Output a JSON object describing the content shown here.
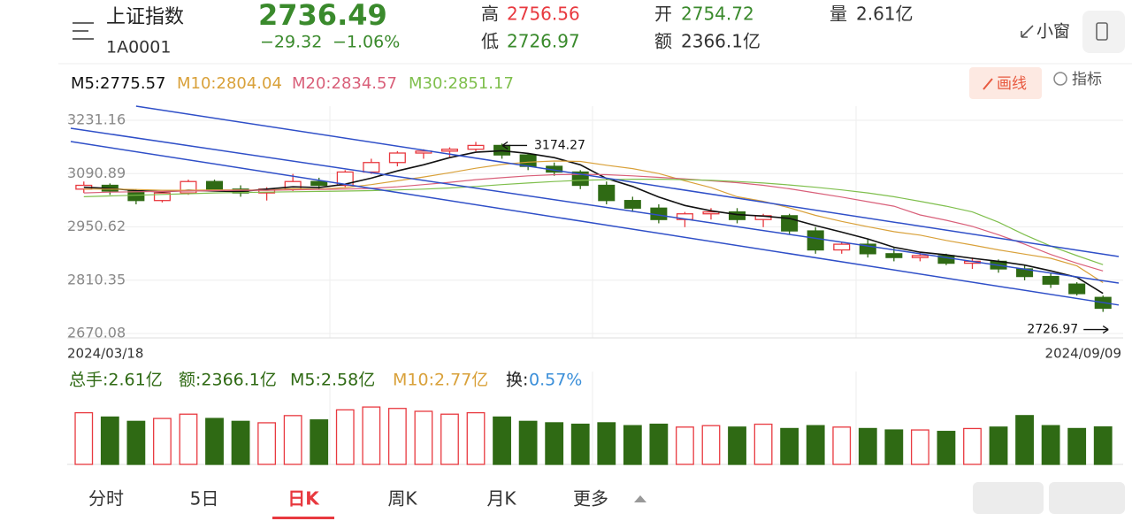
{
  "header": {
    "name": "上证指数",
    "code": "1A0001",
    "price": "2736.49",
    "change": "−29.32",
    "change_pct": "−1.06%",
    "high_label": "高",
    "high": "2756.56",
    "low_label": "低",
    "low": "2726.97",
    "open_label": "开",
    "open": "2754.72",
    "amount_label": "额",
    "amount": "2366.1亿",
    "volume_label": "量",
    "volume": "2.61亿",
    "window": "小窗"
  },
  "toolbar": {
    "draw": "画线",
    "indicator": "指标"
  },
  "chart_data": {
    "type": "candlestick",
    "categories": [
      "2024/03/18",
      null,
      null,
      null,
      null,
      null,
      null,
      null,
      null,
      null,
      null,
      null,
      null,
      null,
      null,
      null,
      null,
      null,
      null,
      null,
      null,
      null,
      null,
      null,
      null,
      null,
      null,
      null,
      null,
      null,
      null,
      null,
      null,
      null,
      null,
      null,
      null,
      null,
      null,
      "2024/09/09"
    ],
    "ylim": [
      2670.08,
      3231.16
    ],
    "yticks": [
      2670.08,
      2810.35,
      2950.62,
      3090.89,
      3231.16
    ],
    "grid": true,
    "up_color": "#e8393f",
    "down_color": "#2f6a14",
    "candles": [
      {
        "open": 3050,
        "high": 3070,
        "low": 3040,
        "close": 3060
      },
      {
        "open": 3060,
        "high": 3065,
        "low": 3035,
        "close": 3045
      },
      {
        "open": 3045,
        "high": 3050,
        "low": 3010,
        "close": 3020
      },
      {
        "open": 3020,
        "high": 3045,
        "low": 3015,
        "close": 3040
      },
      {
        "open": 3040,
        "high": 3075,
        "low": 3035,
        "close": 3070
      },
      {
        "open": 3070,
        "high": 3075,
        "low": 3045,
        "close": 3050
      },
      {
        "open": 3050,
        "high": 3060,
        "low": 3030,
        "close": 3040
      },
      {
        "open": 3040,
        "high": 3055,
        "low": 3020,
        "close": 3050
      },
      {
        "open": 3050,
        "high": 3090,
        "low": 3045,
        "close": 3070
      },
      {
        "open": 3070,
        "high": 3080,
        "low": 3050,
        "close": 3060
      },
      {
        "open": 3060,
        "high": 3100,
        "low": 3055,
        "close": 3095
      },
      {
        "open": 3095,
        "high": 3130,
        "low": 3090,
        "close": 3120
      },
      {
        "open": 3120,
        "high": 3150,
        "low": 3110,
        "close": 3145
      },
      {
        "open": 3145,
        "high": 3155,
        "low": 3130,
        "close": 3150
      },
      {
        "open": 3150,
        "high": 3160,
        "low": 3135,
        "close": 3155
      },
      {
        "open": 3155,
        "high": 3174.27,
        "low": 3150,
        "close": 3165
      },
      {
        "open": 3165,
        "high": 3170,
        "low": 3130,
        "close": 3140
      },
      {
        "open": 3140,
        "high": 3145,
        "low": 3100,
        "close": 3110
      },
      {
        "open": 3110,
        "high": 3120,
        "low": 3085,
        "close": 3095
      },
      {
        "open": 3095,
        "high": 3100,
        "low": 3050,
        "close": 3060
      },
      {
        "open": 3060,
        "high": 3070,
        "low": 3010,
        "close": 3020
      },
      {
        "open": 3020,
        "high": 3030,
        "low": 2990,
        "close": 3000
      },
      {
        "open": 3000,
        "high": 3010,
        "low": 2960,
        "close": 2970
      },
      {
        "open": 2970,
        "high": 2990,
        "low": 2950,
        "close": 2985
      },
      {
        "open": 2985,
        "high": 3000,
        "low": 2970,
        "close": 2990
      },
      {
        "open": 2990,
        "high": 3000,
        "low": 2960,
        "close": 2970
      },
      {
        "open": 2970,
        "high": 2985,
        "low": 2950,
        "close": 2980
      },
      {
        "open": 2980,
        "high": 2985,
        "low": 2930,
        "close": 2940
      },
      {
        "open": 2940,
        "high": 2950,
        "low": 2880,
        "close": 2890
      },
      {
        "open": 2890,
        "high": 2910,
        "low": 2880,
        "close": 2905
      },
      {
        "open": 2905,
        "high": 2920,
        "low": 2870,
        "close": 2880
      },
      {
        "open": 2880,
        "high": 2895,
        "low": 2860,
        "close": 2870
      },
      {
        "open": 2870,
        "high": 2885,
        "low": 2860,
        "close": 2875
      },
      {
        "open": 2875,
        "high": 2880,
        "low": 2850,
        "close": 2855
      },
      {
        "open": 2855,
        "high": 2870,
        "low": 2840,
        "close": 2860
      },
      {
        "open": 2860,
        "high": 2865,
        "low": 2830,
        "close": 2840
      },
      {
        "open": 2840,
        "high": 2850,
        "low": 2810,
        "close": 2820
      },
      {
        "open": 2820,
        "high": 2830,
        "low": 2790,
        "close": 2800
      },
      {
        "open": 2800,
        "high": 2805,
        "low": 2770,
        "close": 2775
      },
      {
        "open": 2765,
        "high": 2770,
        "low": 2726.97,
        "close": 2736.49
      }
    ],
    "series": [
      {
        "name": "M5:2775.57",
        "color": "#111111",
        "values": [
          3055,
          3052,
          3046,
          3043,
          3047,
          3045,
          3044,
          3050,
          3056,
          3054,
          3063,
          3079,
          3098,
          3114,
          3133,
          3147,
          3151,
          3144,
          3133,
          3114,
          3078,
          3057,
          3029,
          3007,
          2993,
          2983,
          2979,
          2973,
          2954,
          2937,
          2919,
          2897,
          2884,
          2877,
          2868,
          2860,
          2850,
          2835,
          2818,
          2775.57
        ]
      },
      {
        "name": "M10:2804.04",
        "color": "#d9a13a",
        "values": [
          3050,
          3050,
          3049,
          3047,
          3047,
          3048,
          3048,
          3047,
          3051,
          3050,
          3054,
          3062,
          3072,
          3082,
          3093,
          3105,
          3115,
          3121,
          3124,
          3123,
          3113,
          3104,
          3091,
          3072,
          3054,
          3030,
          3018,
          3001,
          2981,
          2965,
          2951,
          2938,
          2929,
          2915,
          2903,
          2890,
          2879,
          2868,
          2848,
          2804.04
        ]
      },
      {
        "name": "M20:2834.57",
        "color": "#d9607a",
        "values": [
          3040,
          3042,
          3043,
          3044,
          3045,
          3046,
          3047,
          3047,
          3048,
          3049,
          3050,
          3052,
          3056,
          3062,
          3068,
          3075,
          3080,
          3085,
          3088,
          3089,
          3088,
          3085,
          3081,
          3077,
          3072,
          3067,
          3060,
          3051,
          3040,
          3029,
          3017,
          3005,
          2982,
          2968,
          2952,
          2930,
          2905,
          2878,
          2855,
          2834.57
        ]
      },
      {
        "name": "M30:2851.17",
        "color": "#7fbf4d",
        "values": [
          3030,
          3032,
          3034,
          3036,
          3038,
          3040,
          3041,
          3042,
          3043,
          3044,
          3045,
          3046,
          3048,
          3050,
          3053,
          3057,
          3062,
          3066,
          3070,
          3073,
          3075,
          3076,
          3076,
          3075,
          3073,
          3070,
          3066,
          3061,
          3055,
          3048,
          3040,
          3030,
          3018,
          3005,
          2990,
          2963,
          2930,
          2900,
          2875,
          2851.17
        ]
      }
    ],
    "trend_lines": [
      {
        "x": [
          2,
          39.6
        ],
        "y": [
          3268.4,
          2872.6
        ]
      },
      {
        "x": [
          -0.5,
          39.6
        ],
        "y": [
          3210.2,
          2802.8
        ]
      },
      {
        "x": [
          -0.5,
          39.6
        ],
        "y": [
          3175.3,
          2745.0
        ]
      }
    ],
    "annotations": [
      3174.27,
      2726.97
    ],
    "volume": {
      "ylim": [
        0,
        4.5
      ],
      "values": [
        3.6,
        3.3,
        3.0,
        3.2,
        3.5,
        3.2,
        3.0,
        2.9,
        3.4,
        3.1,
        3.8,
        4.0,
        3.9,
        3.7,
        3.5,
        3.6,
        3.3,
        3.0,
        2.9,
        2.8,
        2.9,
        2.7,
        2.8,
        2.6,
        2.7,
        2.6,
        2.8,
        2.5,
        2.7,
        2.6,
        2.5,
        2.4,
        2.4,
        2.3,
        2.5,
        2.6,
        3.4,
        2.7,
        2.5,
        2.61
      ],
      "legend": [
        "总手:2.61亿",
        "额:2366.1亿",
        "M5:2.58亿",
        "M10:2.77亿",
        "换:",
        "0.57%"
      ]
    }
  },
  "tabs": [
    "分时",
    "5日",
    "日K",
    "周K",
    "月K",
    "更多"
  ]
}
